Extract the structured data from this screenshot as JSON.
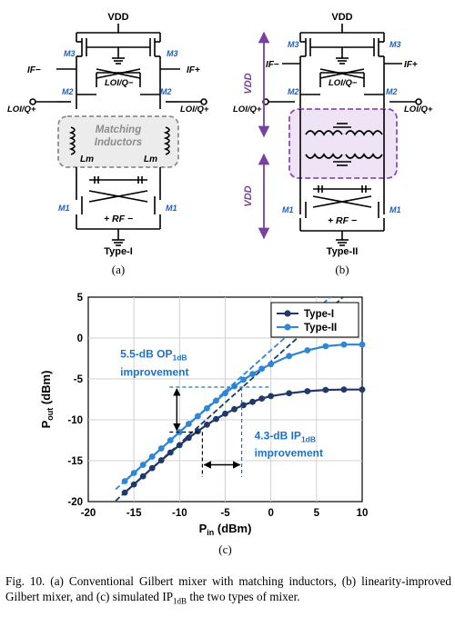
{
  "circuit_a": {
    "vdd": "VDD",
    "m3_left": "M3",
    "m3_right": "M3",
    "if_minus": "IF−",
    "if_plus": "IF+",
    "lo_center": "LOI/Q−",
    "lo_left": "LOI/Q+",
    "lo_right": "LOI/Q+",
    "m2_left": "M2",
    "m2_right": "M2",
    "matching_line1": "Matching",
    "matching_line2": "Inductors",
    "lm_left": "Lm",
    "lm_right": "Lm",
    "m1_left": "M1",
    "m1_right": "M1",
    "rf_label": "+ RF −",
    "type_label": "Type-I",
    "panel_label": "(a)"
  },
  "circuit_b": {
    "vdd": "VDD",
    "vdd_upper": "VDD",
    "vdd_lower": "VDD",
    "m3_left": "M3",
    "m3_right": "M3",
    "if_minus": "IF−",
    "if_plus": "IF+",
    "lo_center": "LOI/Q−",
    "lo_left": "LOI/Q+",
    "lo_right": "LOI/Q+",
    "m2_left": "M2",
    "m2_right": "M2",
    "m1_left": "M1",
    "m1_right": "M1",
    "rf_label": "+ RF −",
    "type_label": "Type-II",
    "panel_label": "(b)"
  },
  "chart_data": {
    "type": "line",
    "xlabel": "Pin (dBm)",
    "ylabel": "Pout (dBm)",
    "xlim": [
      -20,
      10
    ],
    "ylim": [
      -20,
      5
    ],
    "xticks": [
      -20,
      -15,
      -10,
      -5,
      0,
      5,
      10
    ],
    "yticks": [
      5,
      0,
      -5,
      -10,
      -15,
      -20
    ],
    "grid": true,
    "legend_position": "top-right",
    "series": [
      {
        "name": "Type-I",
        "color": "#1f3a68",
        "x": [
          -16,
          -15,
          -14,
          -13,
          -12,
          -11,
          -10,
          -9,
          -8,
          -7,
          -6,
          -5,
          -4,
          -3,
          -2,
          -1,
          0,
          2,
          4,
          6,
          8,
          10
        ],
        "y": [
          -18.9,
          -17.9,
          -16.9,
          -15.9,
          -14.95,
          -14.0,
          -13.1,
          -12.2,
          -11.4,
          -10.6,
          -9.9,
          -9.25,
          -8.7,
          -8.2,
          -7.8,
          -7.4,
          -7.1,
          -6.75,
          -6.5,
          -6.35,
          -6.3,
          -6.3
        ]
      },
      {
        "name": "Type-II",
        "color": "#2e86d4",
        "x": [
          -16,
          -15,
          -14,
          -13,
          -12,
          -11,
          -10,
          -9,
          -8,
          -7,
          -6,
          -5,
          -4,
          -3,
          -2,
          -1,
          0,
          2,
          4,
          6,
          8,
          10
        ],
        "y": [
          -17.5,
          -16.5,
          -15.5,
          -14.5,
          -13.5,
          -12.5,
          -11.5,
          -10.5,
          -9.55,
          -8.6,
          -7.65,
          -6.75,
          -5.9,
          -5.1,
          -4.4,
          -3.75,
          -3.2,
          -2.2,
          -1.5,
          -1.0,
          -0.8,
          -0.8
        ]
      }
    ],
    "extrapolation_lines": [
      {
        "series": "Type-I",
        "x": [
          -17,
          8
        ],
        "y": [
          -19.9,
          5.1
        ]
      },
      {
        "series": "Type-II",
        "x": [
          -17,
          7
        ],
        "y": [
          -18.5,
          5.5
        ]
      }
    ],
    "annotations": {
      "op1db_line1": "5.5-dB OP",
      "op1db_sub": "1dB",
      "op1db_line2": "improvement",
      "ip1db_line1": "4.3-dB IP",
      "ip1db_sub": "1dB",
      "ip1db_line2": "improvement",
      "op1db_low": -11.5,
      "op1db_high": -6.0,
      "ip1db_left": -7.5,
      "ip1db_right": -3.2,
      "ip1db_arrow_y": -15.5
    },
    "panel_label": "(c)"
  },
  "caption": {
    "fig_label": "Fig. 10.",
    "text_part1": " (a) Conventional Gilbert mixer with matching inductors, (b) linearity-improved Gilbert mixer, and (c) simulated IP",
    "text_sub": "1dB",
    "text_part2": " the two types of mixer."
  }
}
